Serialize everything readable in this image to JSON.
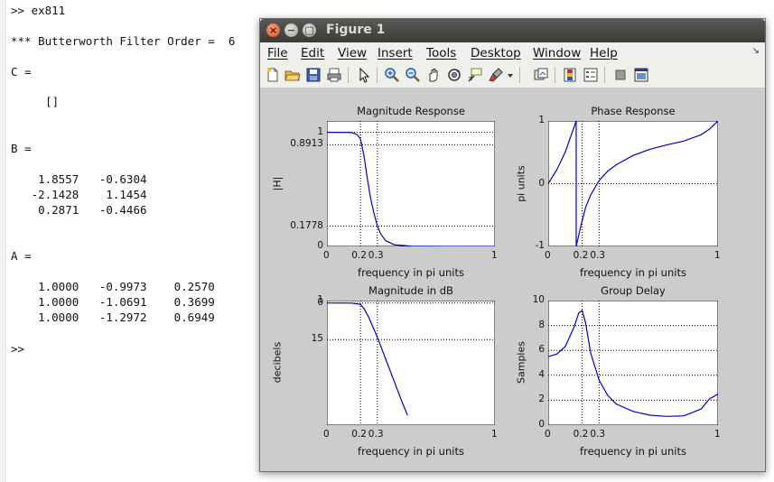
{
  "console": {
    "lines": [
      ">> ex811",
      "*** Butterworth Filter Order =  6",
      "C =",
      "    []",
      "B =",
      "    1.8557   -0.6304",
      "   -2.1428    1.1454",
      "    0.2871   -0.4466",
      "A =",
      "    1.0000   -0.9973    0.2570",
      "    1.0000   -1.0691    0.3699",
      "    1.0000   -1.2972    0.6949",
      ">>"
    ]
  },
  "window": {
    "title": "Figure 1",
    "close_icon": "close-icon",
    "minimize_icon": "minimize-icon",
    "maximize_icon": "maximize-icon"
  },
  "menu": {
    "items": [
      "File",
      "Edit",
      "View",
      "Insert",
      "Tools",
      "Desktop",
      "Window",
      "Help"
    ],
    "dock_arrow": "↘"
  },
  "toolbar": {
    "icons": [
      "new-figure-icon",
      "open-file-icon",
      "save-icon",
      "print-icon",
      "pointer-icon",
      "zoom-in-icon",
      "zoom-out-icon",
      "pan-icon",
      "rotate-3d-icon",
      "data-cursor-icon",
      "brush-icon",
      "link-plot-icon",
      "colorbar-icon",
      "legend-icon",
      "hide-plot-tools-icon",
      "show-plot-tools-icon"
    ]
  },
  "chart_data": [
    {
      "type": "line",
      "title": "Magnitude Response",
      "xlabel": "frequency in pi units",
      "ylabel": "|H|",
      "xlim": [
        0,
        1
      ],
      "ylim": [
        0,
        1.1
      ],
      "xticks": [
        0,
        0.2,
        0.3,
        1
      ],
      "xtick_labels": [
        "0",
        "0.2",
        "0.3",
        "1"
      ],
      "yticks": [
        0,
        0.1778,
        0.8913,
        1
      ],
      "ytick_labels": [
        "0",
        "0.1778",
        "0.8913",
        "1"
      ],
      "grid": true,
      "series": [
        {
          "x": [
            0,
            0.1,
            0.15,
            0.18,
            0.2,
            0.22,
            0.24,
            0.26,
            0.28,
            0.3,
            0.32,
            0.35,
            0.4,
            0.5,
            0.7,
            1.0
          ],
          "values": [
            1.0,
            1.0,
            0.998,
            0.98,
            0.94,
            0.8,
            0.6,
            0.42,
            0.29,
            0.18,
            0.11,
            0.05,
            0.015,
            0.002,
            0.0,
            0.0
          ]
        }
      ]
    },
    {
      "type": "line",
      "title": "Phase Response",
      "xlabel": "frequency in pi units",
      "ylabel": "pi units",
      "xlim": [
        0,
        1
      ],
      "ylim": [
        -1,
        1
      ],
      "xticks": [
        0,
        0.2,
        0.3,
        1
      ],
      "xtick_labels": [
        "0",
        "0.2",
        "0.3",
        "1"
      ],
      "yticks": [
        -1,
        0,
        1
      ],
      "ytick_labels": [
        "-1",
        "0",
        "1"
      ],
      "grid": true,
      "series": [
        {
          "x": [
            0,
            0.05,
            0.1,
            0.165,
            0.165,
            0.19,
            0.22,
            0.25,
            0.3,
            0.35,
            0.4,
            0.5,
            0.6,
            0.7,
            0.8,
            0.9,
            0.95,
            1.0
          ],
          "values": [
            0,
            0.22,
            0.5,
            1.0,
            -1.0,
            -0.7,
            -0.38,
            -0.18,
            0.05,
            0.2,
            0.3,
            0.45,
            0.55,
            0.62,
            0.68,
            0.78,
            0.87,
            1.0
          ]
        }
      ]
    },
    {
      "type": "line",
      "title": "Magnitude in dB",
      "xlabel": "frequency in pi units",
      "ylabel": "decibels",
      "xlim": [
        0,
        1
      ],
      "ylim": [
        -50,
        1
      ],
      "xticks": [
        0,
        0.2,
        0.3,
        1
      ],
      "xtick_labels": [
        "0",
        "0.2",
        "0.3",
        "1"
      ],
      "yticks": [
        1,
        0,
        -15
      ],
      "ytick_labels": [
        "1",
        "0",
        "15"
      ],
      "grid": true,
      "series": [
        {
          "x": [
            0,
            0.1,
            0.15,
            0.2,
            0.22,
            0.25,
            0.3,
            0.35,
            0.4,
            0.45,
            0.48
          ],
          "values": [
            0,
            0,
            -0.05,
            -0.6,
            -2.2,
            -6,
            -14,
            -23,
            -32,
            -41,
            -46
          ]
        }
      ]
    },
    {
      "type": "line",
      "title": "Group Delay",
      "xlabel": "frequency in pi units",
      "ylabel": "Samples",
      "xlim": [
        0,
        1
      ],
      "ylim": [
        0,
        10
      ],
      "xticks": [
        0,
        0.2,
        0.3,
        1
      ],
      "xtick_labels": [
        "0",
        "0.2",
        "0.3",
        "1"
      ],
      "yticks": [
        0,
        2,
        4,
        6,
        8,
        10
      ],
      "ytick_labels": [
        "0",
        "2",
        "4",
        "6",
        "8",
        "10"
      ],
      "grid": true,
      "series": [
        {
          "x": [
            0,
            0.05,
            0.1,
            0.15,
            0.18,
            0.2,
            0.22,
            0.25,
            0.3,
            0.35,
            0.4,
            0.5,
            0.6,
            0.7,
            0.8,
            0.9,
            0.95,
            1.0
          ],
          "values": [
            5.5,
            5.7,
            6.3,
            7.8,
            9.0,
            9.2,
            8.2,
            5.8,
            3.6,
            2.4,
            1.7,
            1.1,
            0.8,
            0.7,
            0.75,
            1.3,
            2.1,
            2.5
          ]
        }
      ]
    }
  ],
  "colors": {
    "line": "#0000cc",
    "canvas": "#cccccc",
    "titlebar": "#3c3b37"
  }
}
